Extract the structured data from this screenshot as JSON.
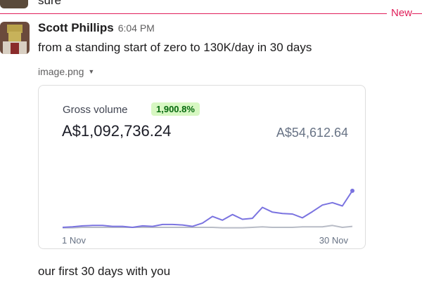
{
  "previous_message": {
    "text": "sure"
  },
  "divider": {
    "label": "New"
  },
  "message": {
    "author": "Scott Phillips",
    "time": "6:04 PM",
    "text": "from a standing start of zero to 130K/day in 30 days",
    "file_name": "image.png",
    "footer_text": "our first 30 days with you"
  },
  "card": {
    "metric_label": "Gross volume",
    "badge": "1,900.8%",
    "main_value": "A$1,092,736.24",
    "compare_value": "A$54,612.64",
    "x_start": "1 Nov",
    "x_end": "30 Nov"
  },
  "colors": {
    "new_divider": "#e01e5a",
    "series_current": "#7a73e0",
    "series_previous": "#b8bcc6",
    "badge_bg": "#d7f7c2"
  },
  "chart_data": {
    "type": "line",
    "x": [
      1,
      2,
      3,
      4,
      5,
      6,
      7,
      8,
      9,
      10,
      11,
      12,
      13,
      14,
      15,
      16,
      17,
      18,
      19,
      20,
      21,
      22,
      23,
      24,
      25,
      26,
      27,
      28,
      29,
      30
    ],
    "xlabel": "",
    "ylabel": "",
    "tick_labels": [
      "1 Nov",
      "30 Nov"
    ],
    "ylim": [
      0,
      130000
    ],
    "series": [
      {
        "values": [
          3000,
          4000,
          6000,
          7000,
          7000,
          5000,
          5000,
          3000,
          6000,
          5000,
          9000,
          9000,
          8000,
          5000,
          12000,
          26000,
          18000,
          30000,
          20000,
          22000,
          45000,
          35000,
          32000,
          31000,
          23000,
          36000,
          50000,
          55000,
          48000,
          80000
        ]
      },
      {
        "values": [
          2000,
          2000,
          3000,
          3000,
          3000,
          3000,
          3000,
          3000,
          3000,
          3000,
          3000,
          3000,
          3000,
          3000,
          3000,
          3000,
          2000,
          2000,
          2000,
          3000,
          4000,
          3000,
          3000,
          3000,
          4000,
          4000,
          4000,
          7000,
          3000,
          5000
        ]
      }
    ]
  }
}
